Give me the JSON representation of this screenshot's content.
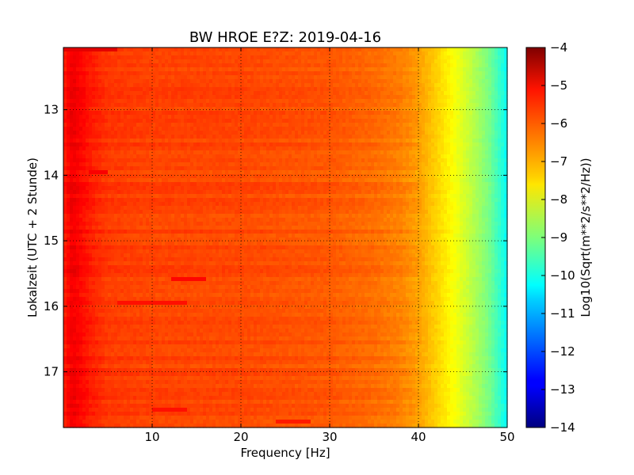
{
  "chart_data": {
    "type": "heatmap",
    "title": "BW HROE E?Z: 2019-04-16",
    "xlabel": "Frequency [Hz]",
    "ylabel": "Lokalzeit (UTC + 2 Stunde)",
    "xlim": [
      0,
      50
    ],
    "ylim": [
      17.85,
      12.05
    ],
    "x_ticks": [
      10,
      20,
      30,
      40,
      50
    ],
    "y_ticks": [
      13,
      14,
      15,
      16,
      17
    ],
    "grid": true,
    "colorbar": {
      "label": "Log10(Sqrt(m**2/s**2/Hz))",
      "range": [
        -14,
        -4
      ],
      "ticks": [
        -4,
        -5,
        -6,
        -7,
        -8,
        -9,
        -10,
        -11,
        -12,
        -13,
        -14
      ],
      "colormap": "jet"
    },
    "frequency_profile": {
      "x": [
        0,
        0.5,
        1,
        2,
        3,
        5,
        10,
        20,
        30,
        35,
        38,
        40,
        42,
        44,
        46,
        48,
        50
      ],
      "value": [
        -5.6,
        -5.3,
        -5.1,
        -5.3,
        -5.5,
        -5.8,
        -5.9,
        -5.95,
        -6.1,
        -6.3,
        -6.5,
        -6.8,
        -7.3,
        -7.8,
        -8.4,
        -9.1,
        -10.2
      ]
    },
    "notable_bands": [
      {
        "time": 12.05,
        "x_range": [
          0,
          6
        ],
        "value": -5.0
      },
      {
        "time": 13.97,
        "x_range": [
          3,
          5
        ],
        "value": -5.2
      },
      {
        "time": 15.6,
        "x_range": [
          12,
          16
        ],
        "value": -5.3
      },
      {
        "time": 15.93,
        "x_range": [
          6,
          14
        ],
        "value": -5.4
      },
      {
        "time": 17.6,
        "x_range": [
          10,
          14
        ],
        "value": -5.4
      },
      {
        "time": 17.78,
        "x_range": [
          24,
          28
        ],
        "value": -5.5
      }
    ]
  }
}
